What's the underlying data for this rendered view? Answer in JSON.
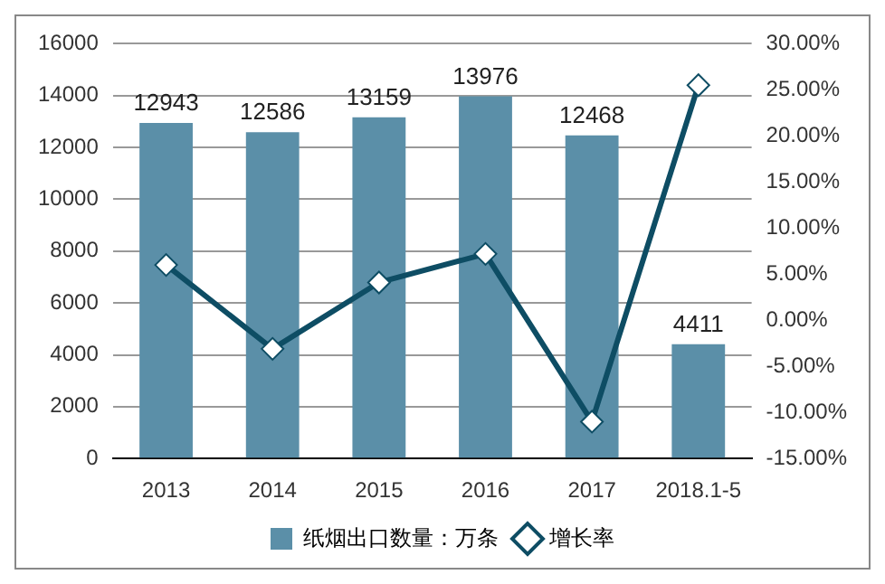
{
  "chart_data": {
    "type": "bar",
    "categories": [
      "2013",
      "2014",
      "2015",
      "2016",
      "2017",
      "2018.1-5"
    ],
    "series": [
      {
        "name": "纸烟出口数量：万条",
        "color": "#5b8fa8",
        "values": [
          12943,
          12586,
          13159,
          13976,
          12468,
          4411
        ],
        "value_labels": [
          "12943",
          "12586",
          "13159",
          "13976",
          "12468",
          "4411"
        ]
      },
      {
        "name": "增长率",
        "type": "line",
        "axis": "y2",
        "color": "#0e4d64",
        "marker": "diamond",
        "values": [
          6.0,
          -3.1,
          4.1,
          7.2,
          -11.0,
          25.5
        ]
      }
    ],
    "ylim": [
      0,
      16000
    ],
    "yticks": [
      0,
      2000,
      4000,
      6000,
      8000,
      10000,
      12000,
      14000,
      16000
    ],
    "y2lim": [
      -15,
      30
    ],
    "y2ticks": [
      {
        "value": -15,
        "label": "-15.00%"
      },
      {
        "value": -10,
        "label": "-10.00%"
      },
      {
        "value": -5,
        "label": "-5.00%"
      },
      {
        "value": 0,
        "label": "0.00%"
      },
      {
        "value": 5,
        "label": "5.00%"
      },
      {
        "value": 10,
        "label": "10.00%"
      },
      {
        "value": 15,
        "label": "15.00%"
      },
      {
        "value": 20,
        "label": "20.00%"
      },
      {
        "value": 25,
        "label": "25.00%"
      },
      {
        "value": 30,
        "label": "30.00%"
      }
    ],
    "grid": "y",
    "legend": "bottom"
  }
}
